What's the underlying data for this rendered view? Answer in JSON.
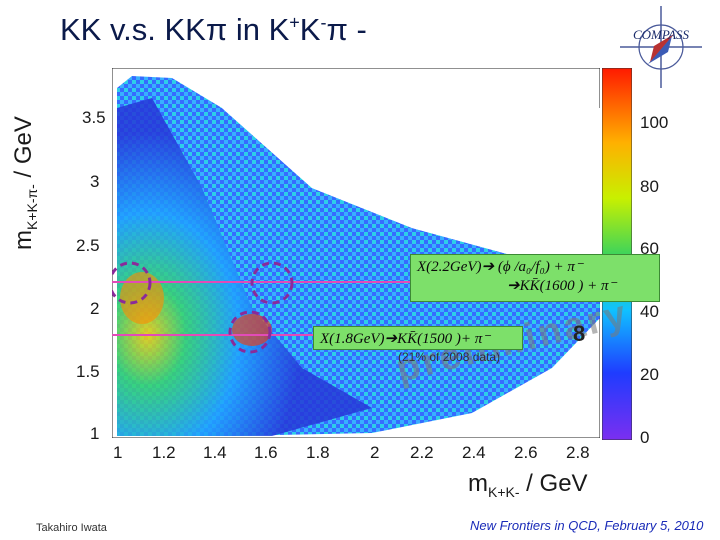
{
  "slide": {
    "title": {
      "a": "KK  v.s. KKπ  in K",
      "b": "+",
      "c": "K",
      "d": "-",
      "e": "π",
      "f": " -"
    },
    "logo_text": "COMPASS",
    "author": "Takahiro Iwata",
    "footer": "New Frontiers in QCD,  February 5, 2010",
    "watermark": "preliminary",
    "stats_line": "(21% of 2008 data)",
    "partial_label": "8"
  },
  "axes": {
    "y_label_main": "m",
    "y_label_sub": "K+K-π-",
    "y_label_unit": " / GeV",
    "x_label_main": "m",
    "x_label_sub": "K+K-",
    "x_label_unit": " / GeV"
  },
  "annotations": {
    "upper_line1": "X(2.2GeV)➔ (ϕ /a₀/f₀) +  π⁻",
    "upper_line2": "➔KK̄(1600 ) + π⁻",
    "lower": "X(1.8GeV)➔KK̄(1500 )+ π⁻"
  },
  "chart_data": {
    "type": "heatmap",
    "xlabel": "m_{K+K-} / GeV",
    "ylabel": "m_{K+K-π-} / GeV",
    "xlim": [
      0.95,
      2.9
    ],
    "ylim": [
      1.0,
      3.85
    ],
    "x_ticks": [
      "1",
      "1.2",
      "1.4",
      "1.6",
      "1.8",
      "2",
      "2.2",
      "2.4",
      "2.6",
      "2.8"
    ],
    "y_ticks": [
      "1",
      "1.5",
      "2",
      "2.5",
      "3",
      "3.5"
    ],
    "colorbar": {
      "range": [
        0,
        115
      ],
      "ticks": [
        "0",
        "20",
        "40",
        "60",
        "80",
        "100"
      ]
    },
    "markers": [
      {
        "label": "X(2.2GeV)",
        "x": 1.05,
        "y": 2.2
      },
      {
        "label": "X(2.2GeV)",
        "x": 1.52,
        "y": 2.2
      },
      {
        "label": "X(1.8GeV)",
        "x": 1.53,
        "y": 1.83
      }
    ],
    "horizontal_lines_y": [
      2.2,
      1.83
    ]
  },
  "colors": {
    "title": "#0b1a4a",
    "annotation_bg": "#7de06a",
    "marker_circle": "#8a2a9a",
    "marker_line": "#e24bb8",
    "footer": "#1a2bb8"
  }
}
